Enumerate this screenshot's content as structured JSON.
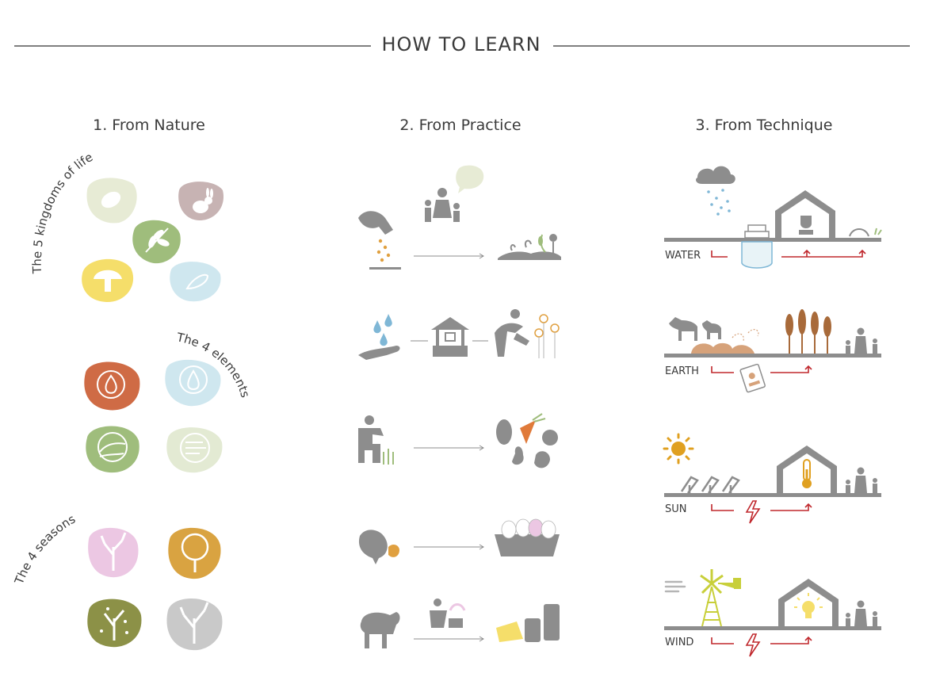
{
  "title": "HOW TO LEARN",
  "columns": [
    {
      "heading": "1. From Nature"
    },
    {
      "heading": "2. From Practice"
    },
    {
      "heading": "3. From Technique"
    }
  ],
  "nature": {
    "kingdoms_label": "The 5 kingdoms of life",
    "elements_label": "The 4 elements",
    "seasons_label": "The 4 seasons"
  },
  "technique": {
    "rows": [
      {
        "label": "WATER"
      },
      {
        "label": "EARTH"
      },
      {
        "label": "SUN"
      },
      {
        "label": "WIND"
      }
    ]
  },
  "colors": {
    "line": "#8f8f8f",
    "icon_gray": "#8d8d8d",
    "arrow_red": "#c0282d",
    "seed_orange": "#e0a040",
    "soil": "#d6a27a",
    "wheat": "#a86a3a",
    "sun": "#e0a020",
    "wind_yellow": "#c8cf3a",
    "blob_cream": "#e7ebd5",
    "blob_mauve": "#c7b3b3",
    "blob_green": "#9fbd7c",
    "blob_yellow": "#f5de6a",
    "blob_blue": "#cfe7ef",
    "blob_fire": "#cf6b45",
    "blob_water": "#cfe7ef",
    "blob_earth": "#9fbd7c",
    "blob_air": "#e3ead3",
    "blob_spring": "#ecc7e3",
    "blob_summer": "#d9a341",
    "blob_autumn": "#8c9147",
    "blob_winter": "#c9c9c9"
  }
}
